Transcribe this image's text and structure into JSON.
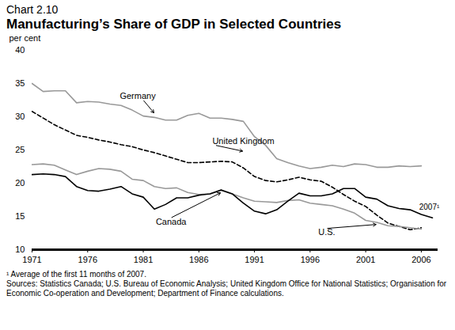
{
  "chart_data": {
    "type": "line",
    "title": "Chart 2.10",
    "subtitle": "Manufacturing’s Share of GDP in Selected Countries",
    "y_label": "per cent",
    "x": [
      1971,
      1972,
      1973,
      1974,
      1975,
      1976,
      1977,
      1978,
      1979,
      1980,
      1981,
      1982,
      1983,
      1984,
      1985,
      1986,
      1987,
      1988,
      1989,
      1990,
      1991,
      1992,
      1993,
      1994,
      1995,
      1996,
      1997,
      1998,
      1999,
      2000,
      2001,
      2002,
      2003,
      2004,
      2005,
      2006,
      2007
    ],
    "series": [
      {
        "name": "Germany",
        "color": "#999999",
        "line_style": "solid",
        "values": [
          35.0,
          33.8,
          33.9,
          33.9,
          32.1,
          32.3,
          32.2,
          31.9,
          31.7,
          31.0,
          30.1,
          29.9,
          29.5,
          29.5,
          30.2,
          30.5,
          29.8,
          29.8,
          29.6,
          29.3,
          27.0,
          25.7,
          23.7,
          23.1,
          22.6,
          22.2,
          22.4,
          22.7,
          22.5,
          22.9,
          22.8,
          22.4,
          22.4,
          22.6,
          22.5,
          22.6,
          null
        ]
      },
      {
        "name": "United Kingdom",
        "color": "#000000",
        "line_style": "dashed",
        "values": [
          30.8,
          29.8,
          28.8,
          28.0,
          27.2,
          26.9,
          26.5,
          26.2,
          25.8,
          25.5,
          25.0,
          24.6,
          24.1,
          23.6,
          23.1,
          23.1,
          23.2,
          23.3,
          23.2,
          22.3,
          21.0,
          20.4,
          20.2,
          20.5,
          20.9,
          20.5,
          20.3,
          19.4,
          18.3,
          17.3,
          16.5,
          15.2,
          14.0,
          13.5,
          13.0,
          13.3,
          null
        ]
      },
      {
        "name": "U.S.",
        "color": "#999999",
        "line_style": "solid",
        "values": [
          22.8,
          22.9,
          22.7,
          22.0,
          21.3,
          21.8,
          22.2,
          22.1,
          21.8,
          20.6,
          20.4,
          19.5,
          19.2,
          19.3,
          18.6,
          18.3,
          18.4,
          18.9,
          18.4,
          17.8,
          17.3,
          17.2,
          17.1,
          17.4,
          17.5,
          17.0,
          16.8,
          16.6,
          16.1,
          15.5,
          14.4,
          14.1,
          13.6,
          13.5,
          13.3,
          13.1,
          null
        ]
      },
      {
        "name": "Canada",
        "color": "#000000",
        "line_style": "solid",
        "values": [
          21.3,
          21.4,
          21.3,
          21.0,
          19.5,
          18.9,
          18.8,
          19.1,
          19.5,
          18.4,
          17.9,
          16.1,
          16.8,
          17.8,
          17.8,
          18.2,
          18.4,
          19.0,
          18.4,
          17.0,
          15.8,
          15.4,
          16.0,
          17.3,
          18.5,
          18.1,
          18.1,
          18.4,
          19.2,
          19.2,
          17.9,
          17.6,
          16.6,
          16.2,
          16.0,
          15.3,
          14.8
        ]
      }
    ],
    "annotations": [
      "2007¹"
    ],
    "xlim": [
      1971,
      2007.5
    ],
    "xticks": [
      1971,
      1976,
      1981,
      1986,
      1991,
      1996,
      2001,
      2006
    ],
    "ylim": [
      10,
      40
    ],
    "yticks": [
      10,
      15,
      20,
      25,
      30,
      35,
      40
    ],
    "grid": false,
    "footnote": "¹ Average of the first 11 months of 2007.",
    "sources": "Sources: Statistics Canada; U.S. Bureau of Economic Analysis; United Kingdom Office for National Statistics; Organisation for Economic Co-operation and Development; Department of Finance calculations."
  }
}
